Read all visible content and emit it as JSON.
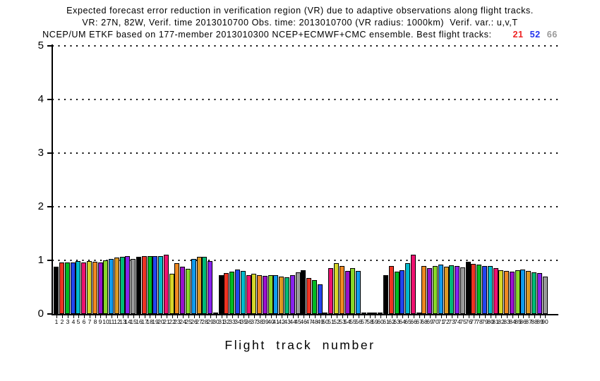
{
  "title": {
    "line1": "Expected forecast error reduction in verification region (VR) due to adaptive observations along flight tracks.",
    "line2": "VR: 27N, 82W, Verif. time 2013010700 Obs. time: 2013010700 (VR radius: 1000km)  Verif. var.: u,v,T",
    "line3_prefix": "NCEP/UM ETKF based on 177-member 2013010300 NCEP+ECMWF+CMC ensemble. Best flight tracks:",
    "best_tracks": [
      {
        "label": "21",
        "color": "#ee2222"
      },
      {
        "label": "52",
        "color": "#2233ee"
      },
      {
        "label": "66",
        "color": "#999999"
      }
    ]
  },
  "chart_data": {
    "type": "bar",
    "title": "Expected forecast error reduction in verification region (VR) due to adaptive observations along flight tracks.",
    "xlabel": "Flight track number",
    "ylabel": "",
    "ylim": [
      0,
      5
    ],
    "yticks": [
      0,
      1,
      2,
      3,
      4,
      5
    ],
    "grid": "horizontal dotted lines at integer values",
    "legend": "none",
    "bar_outline_color": "#000000",
    "bar_color_cycle": [
      "#000000",
      "#ee3322",
      "#00bb22",
      "#2244ee",
      "#00bbcc",
      "#ee1170",
      "#d6d62a",
      "#ee8822",
      "#9911cc",
      "#88d62a",
      "#0f9aee",
      "#dd9922",
      "#00bb77",
      "#8822ee",
      "#999999"
    ],
    "categories": [
      1,
      2,
      3,
      4,
      5,
      6,
      7,
      8,
      9,
      10,
      11,
      12,
      13,
      14,
      15,
      16,
      17,
      18,
      19,
      20,
      21,
      22,
      23,
      24,
      25,
      26,
      27,
      28,
      29,
      30,
      31,
      32,
      33,
      34,
      35,
      36,
      37,
      38,
      39,
      40,
      41,
      42,
      43,
      44,
      45,
      46,
      47,
      48,
      49,
      50,
      51,
      52,
      53,
      54,
      55,
      56,
      57,
      58,
      59,
      60,
      61,
      62,
      63,
      64,
      65,
      66,
      67,
      68,
      69,
      70,
      71,
      72,
      73,
      74,
      75,
      76,
      77,
      78,
      79,
      80,
      81,
      82,
      83,
      84,
      85,
      86,
      87,
      88,
      89,
      90
    ],
    "values": [
      0.88,
      0.96,
      0.96,
      0.96,
      0.99,
      0.96,
      0.99,
      0.98,
      0.96,
      1.0,
      1.03,
      1.05,
      1.06,
      1.08,
      1.02,
      1.07,
      1.08,
      1.08,
      1.08,
      1.08,
      1.1,
      0.75,
      0.95,
      0.88,
      0.84,
      1.03,
      1.07,
      1.06,
      0.99,
      0.02,
      0.73,
      0.76,
      0.79,
      0.83,
      0.8,
      0.73,
      0.75,
      0.72,
      0.71,
      0.73,
      0.72,
      0.7,
      0.68,
      0.73,
      0.78,
      0.82,
      0.67,
      0.63,
      0.55,
      0.02,
      0.86,
      0.95,
      0.89,
      0.8,
      0.85,
      0.8,
      0.02,
      0.02,
      0.03,
      0.02,
      0.72,
      0.9,
      0.79,
      0.82,
      0.95,
      1.1,
      0.02,
      0.9,
      0.86,
      0.9,
      0.92,
      0.88,
      0.91,
      0.89,
      0.87,
      0.97,
      0.93,
      0.92,
      0.9,
      0.9,
      0.85,
      0.82,
      0.8,
      0.79,
      0.81,
      0.83,
      0.8,
      0.78,
      0.76,
      0.7
    ]
  }
}
